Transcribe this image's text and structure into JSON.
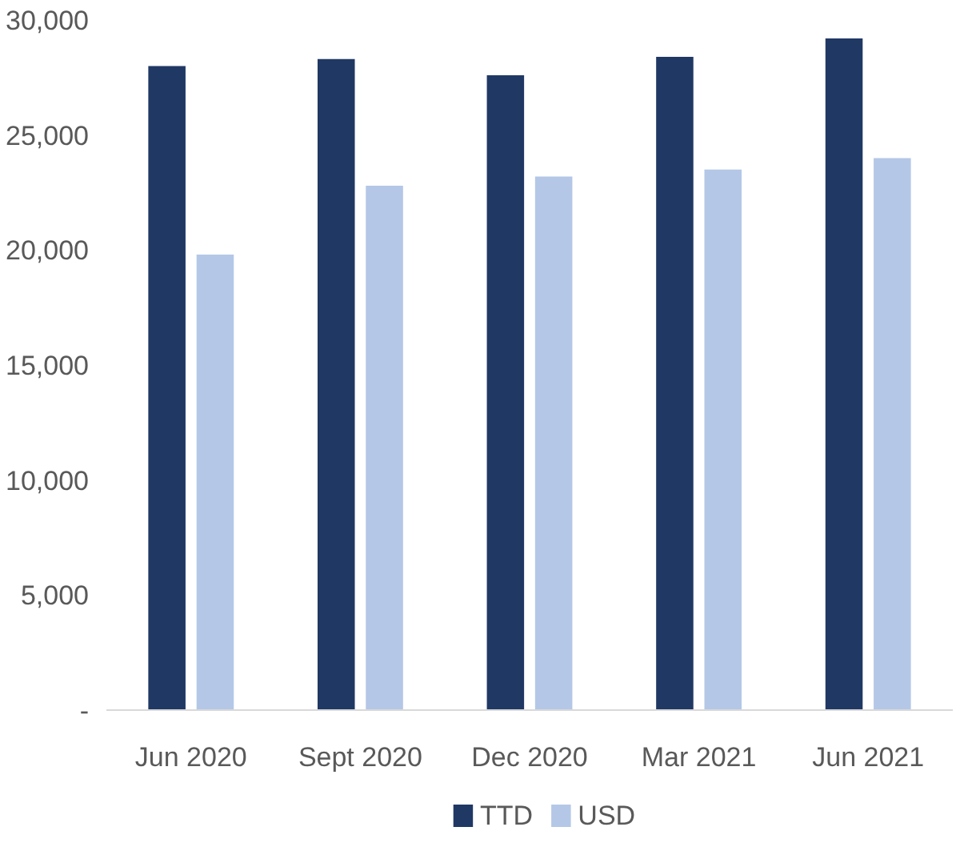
{
  "chart_data": {
    "type": "bar",
    "categories": [
      "Jun 2020",
      "Sept 2020",
      "Dec 2020",
      "Mar 2021",
      "Jun 2021"
    ],
    "series": [
      {
        "name": "TTD",
        "color": "#203864",
        "values": [
          28000,
          28300,
          27600,
          28400,
          29200
        ]
      },
      {
        "name": "USD",
        "color": "#b4c7e7",
        "values": [
          19800,
          22800,
          23200,
          23500,
          24000
        ]
      }
    ],
    "ylim": [
      0,
      30000
    ],
    "yticks": [
      {
        "value": 0,
        "label": "-"
      },
      {
        "value": 5000,
        "label": "5,000"
      },
      {
        "value": 10000,
        "label": "10,000"
      },
      {
        "value": 15000,
        "label": "15,000"
      },
      {
        "value": 20000,
        "label": "20,000"
      },
      {
        "value": 25000,
        "label": "25,000"
      },
      {
        "value": 30000,
        "label": "30,000"
      }
    ],
    "grid": false,
    "legend": "bottom"
  }
}
